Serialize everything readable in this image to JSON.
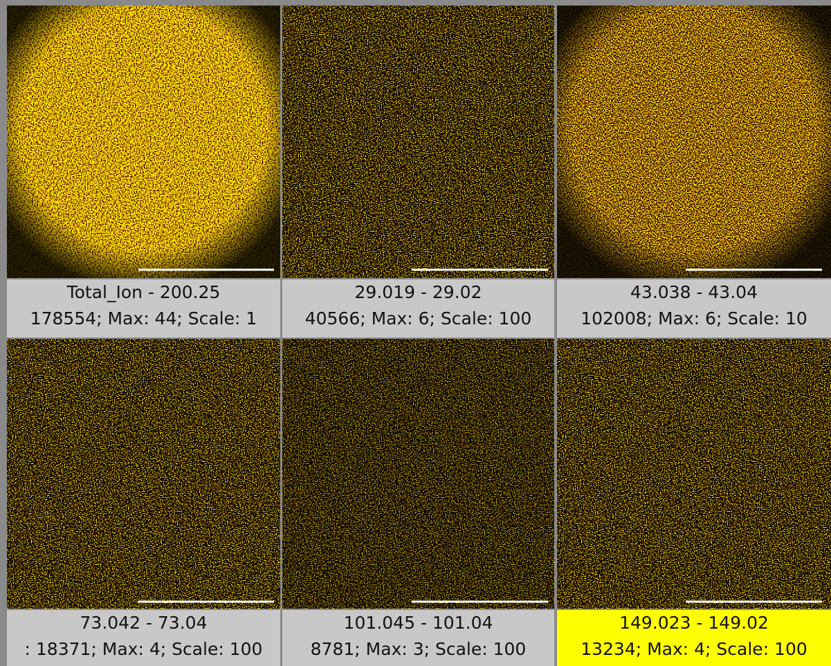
{
  "panels": [
    {
      "title": "Total_Ion - 200.25",
      "info": "178554; Max: 44; Scale: 1"
    },
    {
      "title": "29.019 -  29.02",
      "info": "40566; Max: 6; Scale: 100"
    },
    {
      "title": "43.038 -  43.04",
      "info": "102008; Max: 6; Scale: 10"
    },
    {
      "title": "73.042 -  73.04",
      "info": ": 18371; Max: 4; Scale: 100"
    },
    {
      "title": "101.045 - 101.04",
      "info": "8781; Max: 3; Scale: 100"
    },
    {
      "title": "149.023 - 149.02",
      "info": "13234; Max: 4; Scale: 100"
    }
  ]
}
